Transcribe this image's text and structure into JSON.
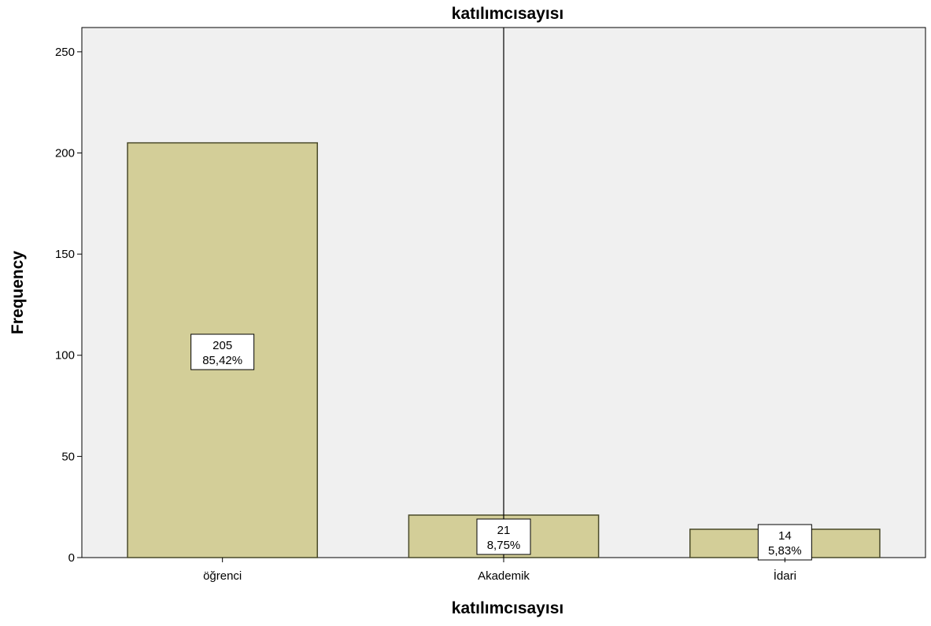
{
  "chart_data": {
    "type": "bar",
    "title": "katılımcısayısı",
    "xlabel": "katılımcısayısı",
    "ylabel": "Frequency",
    "categories": [
      "öğrenci",
      "Akademik",
      "İdari"
    ],
    "values": [
      205,
      21,
      14
    ],
    "data_labels": [
      {
        "count": "205",
        "percent": "85,42%"
      },
      {
        "count": "21",
        "percent": "8,75%"
      },
      {
        "count": "14",
        "percent": "5,83%"
      }
    ],
    "y_ticks": [
      0,
      50,
      100,
      150,
      200,
      250
    ],
    "ylim": [
      0,
      262
    ],
    "grid": false,
    "reference_line": "vertical line at category Akademik",
    "colors": {
      "bar_fill": "#d3ce98",
      "bar_stroke": "#4a4a2a",
      "plot_background": "#f0f0f0",
      "label_box_fill": "#ffffff"
    }
  }
}
